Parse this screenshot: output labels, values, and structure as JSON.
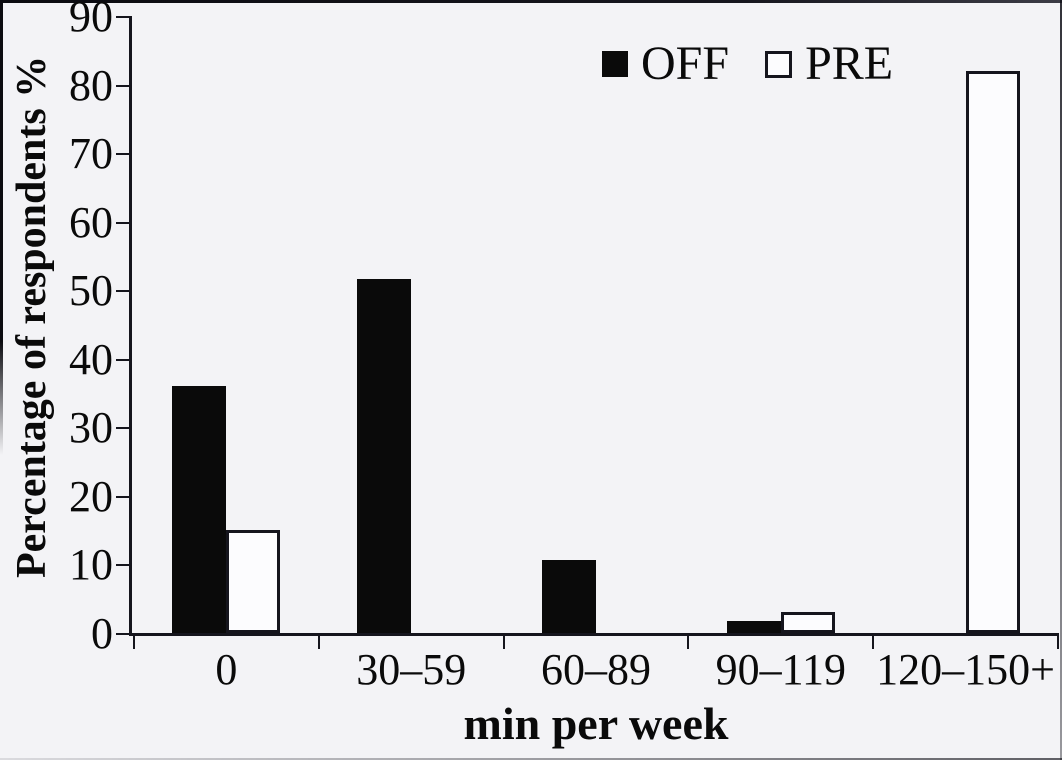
{
  "colors": {
    "background": "#f3f3f6",
    "bar_off": "#0a0a0a",
    "bar_pre_fill": "#ffffff",
    "line": "#15151d"
  },
  "legend": {
    "off_label": "OFF",
    "pre_label": "PRE"
  },
  "chart_data": {
    "type": "bar",
    "title": "",
    "categories": [
      "0",
      "30–59",
      "60–89",
      "90–119",
      "120–150+"
    ],
    "series": [
      {
        "name": "OFF",
        "style": "filled-black",
        "values": [
          36,
          51.7,
          10.7,
          1.7,
          0
        ]
      },
      {
        "name": "PRE",
        "style": "white-outlined",
        "values": [
          15,
          0,
          0,
          3,
          82
        ]
      }
    ],
    "xlabel": "min per week",
    "ylabel": "Percentage of respondents %",
    "ylim": [
      0,
      90
    ],
    "ytick_step": 10,
    "yticks": [
      0,
      10,
      20,
      30,
      40,
      50,
      60,
      70,
      80,
      90
    ],
    "grid": false,
    "legend_position": "top-center"
  }
}
